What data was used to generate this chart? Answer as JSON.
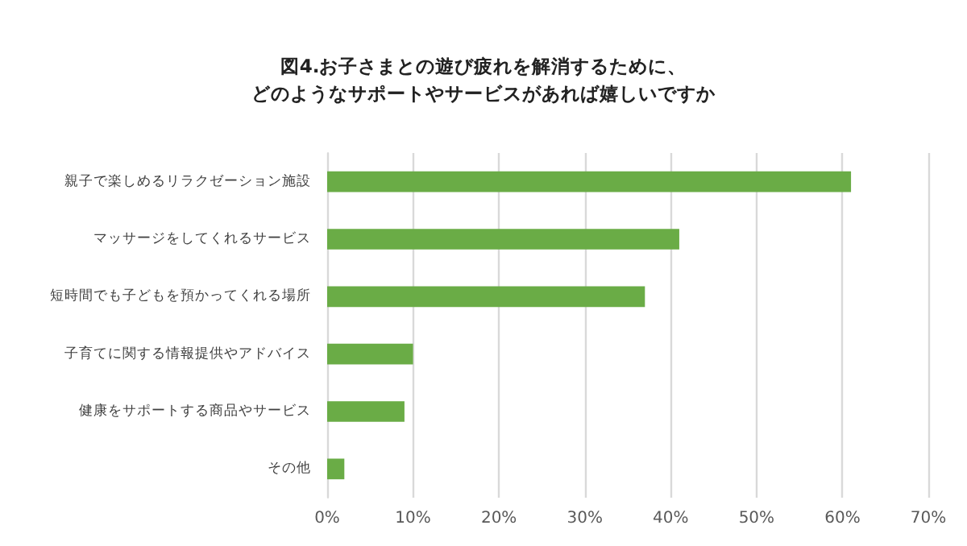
{
  "chart_data": {
    "type": "bar",
    "orientation": "horizontal",
    "title": "図4.お子さまとの遊び疲れを解消するために、",
    "subtitle": "どのようなサポートやサービスがあれば嬉しいですか",
    "categories": [
      "親子で楽しめるリラクゼーション施設",
      "マッサージをしてくれるサービス",
      "短時間でも子どもを預かってくれる場所",
      "子育てに関する情報提供やアドバイス",
      "健康をサポートする商品やサービス",
      "その他"
    ],
    "values": [
      61,
      41,
      37,
      10,
      9,
      2
    ],
    "color": "#6aac46",
    "xlim": [
      0,
      70
    ],
    "xticks": [
      {
        "value": 0,
        "label": "0%"
      },
      {
        "value": 10,
        "label": "10%"
      },
      {
        "value": 20,
        "label": "20%"
      },
      {
        "value": 30,
        "label": "30%"
      },
      {
        "value": 40,
        "label": "40%"
      },
      {
        "value": 50,
        "label": "50%"
      },
      {
        "value": 60,
        "label": "60%"
      },
      {
        "value": 70,
        "label": "70%"
      }
    ],
    "grid": "x"
  }
}
